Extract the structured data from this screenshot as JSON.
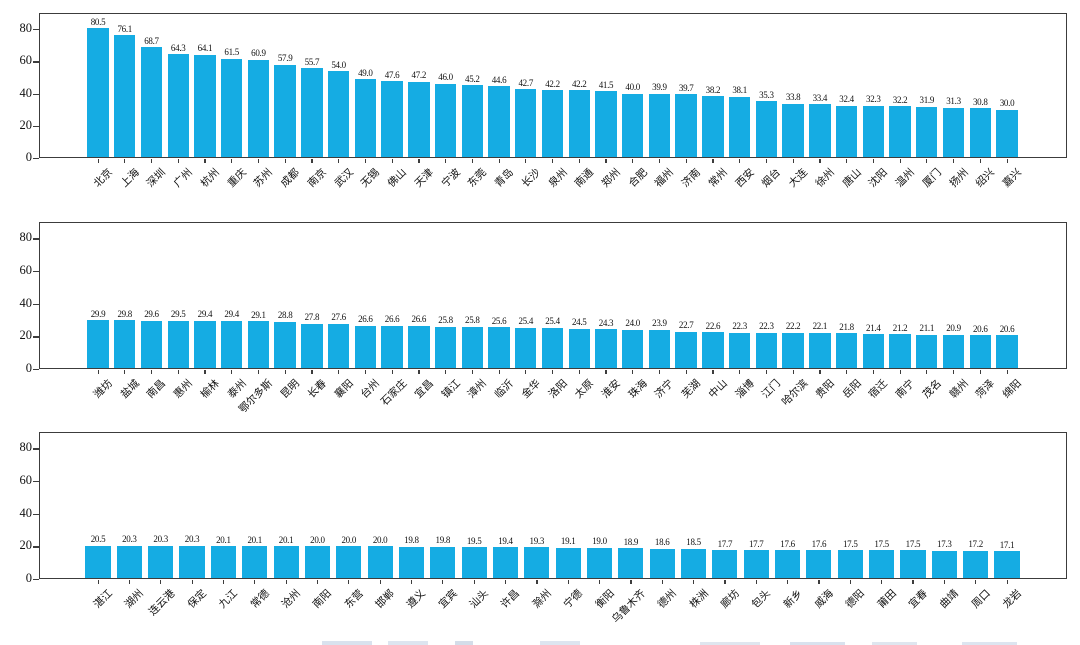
{
  "figure": {
    "bar_color": "#15ACE3",
    "axis_color": "#3c3c3c",
    "text_color": "#111111",
    "ylim": [
      0,
      90
    ],
    "yticks": [
      0,
      20,
      40,
      60,
      80
    ],
    "grid": false,
    "legend": "cut off at bottom edge (only faint fragments visible)"
  },
  "chart_data": [
    {
      "type": "bar",
      "title": "",
      "xlabel": "",
      "ylabel": "",
      "ylim": [
        0,
        90
      ],
      "yticks": [
        0,
        20,
        40,
        60,
        80
      ],
      "categories": [
        "北京",
        "上海",
        "深圳",
        "广州",
        "杭州",
        "重庆",
        "苏州",
        "成都",
        "南京",
        "武汉",
        "无锡",
        "佛山",
        "天津",
        "宁波",
        "东莞",
        "青岛",
        "长沙",
        "泉州",
        "南通",
        "郑州",
        "合肥",
        "福州",
        "济南",
        "常州",
        "西安",
        "烟台",
        "大连",
        "徐州",
        "唐山",
        "沈阳",
        "温州",
        "厦门",
        "扬州",
        "绍兴",
        "嘉兴"
      ],
      "values": [
        80.5,
        76.1,
        68.7,
        64.3,
        64.1,
        61.5,
        60.9,
        57.9,
        55.7,
        54.0,
        49.0,
        47.6,
        47.2,
        46.0,
        45.2,
        44.6,
        42.7,
        42.2,
        42.2,
        41.5,
        40.0,
        39.9,
        39.7,
        38.2,
        38.1,
        35.3,
        33.8,
        33.4,
        32.4,
        32.3,
        32.2,
        31.9,
        31.3,
        30.8,
        30.0
      ],
      "value_labels": [
        "80.5",
        "76.1",
        "68.7",
        "64.3",
        "64.1",
        "61.5",
        "60.9",
        "57.9",
        "55.7",
        "54.0",
        "49.0",
        "47.6",
        "47.2",
        "46.0",
        "45.2",
        "44.6",
        "42.7",
        "42.2",
        "42.2",
        "41.5",
        "40.0",
        "39.9",
        "39.7",
        "38.2",
        "38.1",
        "35.3",
        "33.8",
        "33.4",
        "32.4",
        "32.3",
        "32.2",
        "31.9",
        "31.3",
        "30.8",
        "30.0"
      ]
    },
    {
      "type": "bar",
      "title": "",
      "xlabel": "",
      "ylabel": "",
      "ylim": [
        0,
        90
      ],
      "yticks": [
        0,
        20,
        40,
        60,
        80
      ],
      "categories": [
        "潍坊",
        "盐城",
        "南昌",
        "惠州",
        "榆林",
        "泰州",
        "鄂尔多斯",
        "昆明",
        "长春",
        "襄阳",
        "台州",
        "石家庄",
        "宜昌",
        "镇江",
        "漳州",
        "临沂",
        "金华",
        "洛阳",
        "太原",
        "淮安",
        "珠海",
        "济宁",
        "芜湖",
        "中山",
        "淄博",
        "江门",
        "哈尔滨",
        "贵阳",
        "岳阳",
        "宿迁",
        "南宁",
        "茂名",
        "赣州",
        "菏泽",
        "绵阳"
      ],
      "values": [
        29.9,
        29.8,
        29.6,
        29.5,
        29.4,
        29.4,
        29.1,
        28.8,
        27.8,
        27.6,
        26.6,
        26.6,
        26.6,
        25.8,
        25.8,
        25.6,
        25.4,
        25.4,
        24.5,
        24.3,
        24.0,
        23.9,
        22.7,
        22.6,
        22.3,
        22.3,
        22.2,
        22.1,
        21.8,
        21.4,
        21.2,
        21.1,
        20.9,
        20.6,
        20.6
      ],
      "value_labels": [
        "29.9",
        "29.8",
        "29.6",
        "29.5",
        "29.4",
        "29.4",
        "29.1",
        "28.8",
        "27.8",
        "27.6",
        "26.6",
        "26.6",
        "26.6",
        "25.8",
        "25.8",
        "25.6",
        "25.4",
        "25.4",
        "24.5",
        "24.3",
        "24.0",
        "23.9",
        "22.7",
        "22.6",
        "22.3",
        "22.3",
        "22.2",
        "22.1",
        "21.8",
        "21.4",
        "21.2",
        "21.1",
        "20.9",
        "20.6",
        "20.6"
      ]
    },
    {
      "type": "bar",
      "title": "",
      "xlabel": "",
      "ylabel": "",
      "ylim": [
        0,
        90
      ],
      "yticks": [
        0,
        20,
        40,
        60,
        80
      ],
      "categories": [
        "湛江",
        "湖州",
        "连云港",
        "保定",
        "九江",
        "常德",
        "沧州",
        "南阳",
        "东营",
        "邯郸",
        "遵义",
        "宜宾",
        "汕头",
        "许昌",
        "滁州",
        "宁德",
        "衡阳",
        "乌鲁木齐",
        "德州",
        "株洲",
        "廊坊",
        "包头",
        "新乡",
        "威海",
        "德阳",
        "莆田",
        "宜春",
        "曲靖",
        "周口",
        "龙岩"
      ],
      "values": [
        20.5,
        20.3,
        20.3,
        20.3,
        20.1,
        20.1,
        20.1,
        20.0,
        20.0,
        20.0,
        19.8,
        19.8,
        19.5,
        19.4,
        19.3,
        19.1,
        19.0,
        18.9,
        18.6,
        18.5,
        17.7,
        17.7,
        17.6,
        17.6,
        17.5,
        17.5,
        17.5,
        17.3,
        17.2,
        17.1
      ],
      "value_labels": [
        "20.5",
        "20.3",
        "20.3",
        "20.3",
        "20.1",
        "20.1",
        "20.1",
        "20.0",
        "20.0",
        "20.0",
        "19.8",
        "19.8",
        "19.5",
        "19.4",
        "19.3",
        "19.1",
        "19.0",
        "18.9",
        "18.6",
        "18.5",
        "17.7",
        "17.7",
        "17.6",
        "17.6",
        "17.5",
        "17.5",
        "17.5",
        "17.3",
        "17.2",
        "17.1"
      ]
    }
  ]
}
